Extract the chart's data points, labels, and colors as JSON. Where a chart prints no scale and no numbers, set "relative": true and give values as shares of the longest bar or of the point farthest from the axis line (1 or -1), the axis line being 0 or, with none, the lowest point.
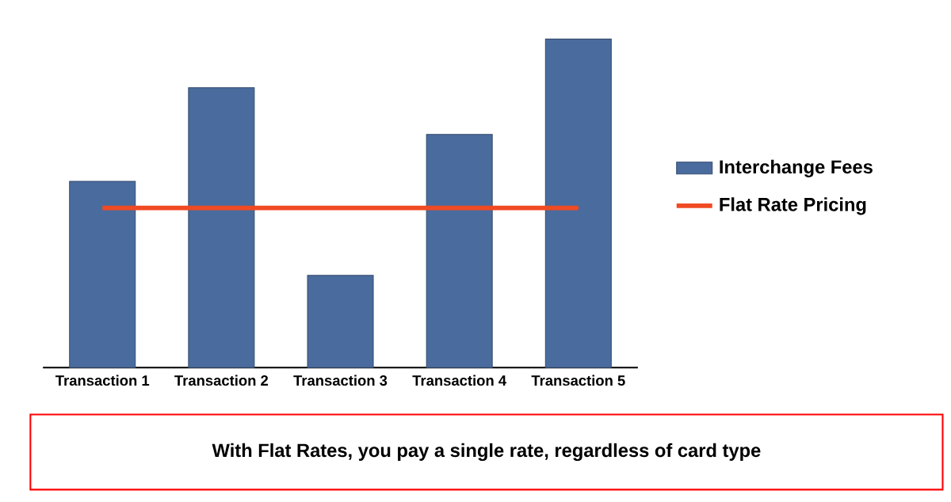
{
  "chart_data": {
    "type": "bar",
    "relative": true,
    "categories": [
      "Transaction 1",
      "Transaction 2",
      "Transaction 3",
      "Transaction 4",
      "Transaction 5"
    ],
    "series": [
      {
        "name": "Interchange Fees",
        "color": "#4a6b9d",
        "values": [
          0.567,
          0.852,
          0.281,
          0.71,
          1
        ]
      },
      {
        "name": "Flat Rate Pricing",
        "type": "line",
        "color": "#f04a23",
        "values": [
          0.486,
          0.486,
          0.486,
          0.486,
          0.486
        ]
      }
    ],
    "legend": "right",
    "annotations": [
      "With Flat Rates, you pay a single rate, regardless of card type"
    ]
  }
}
